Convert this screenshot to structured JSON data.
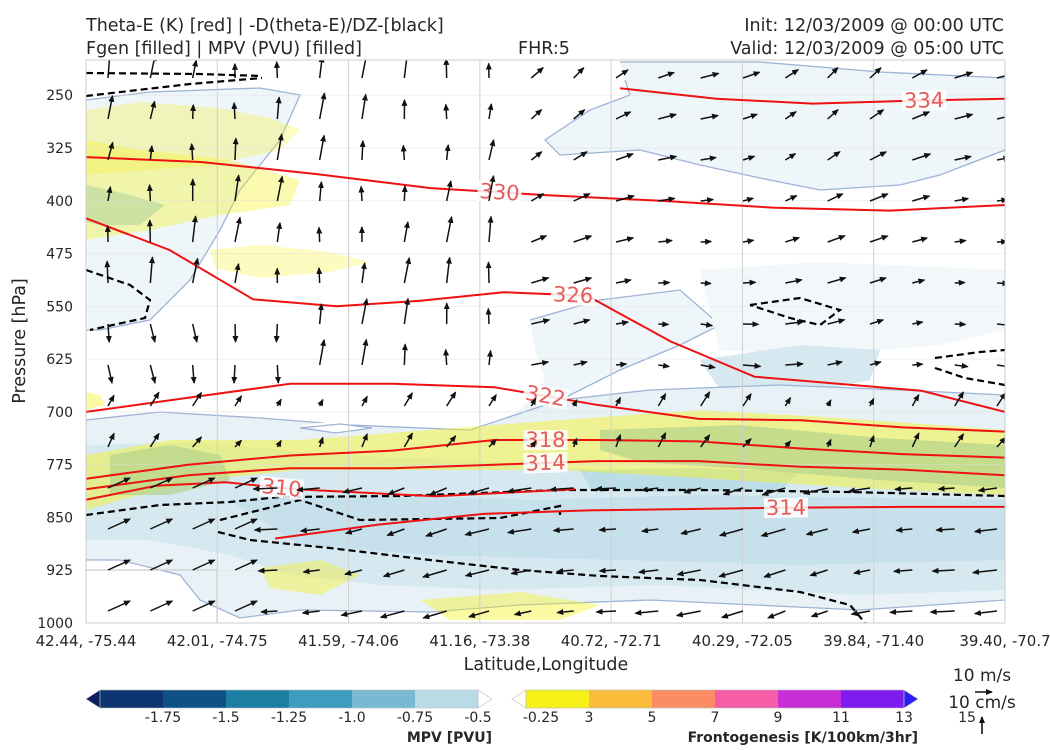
{
  "header": {
    "title_line1": "Theta-E (K) [red] | -D(theta-E)/DZ-[black]",
    "title_line2": "Fgen [filled] | MPV (PVU) [filled]",
    "fhr": "FHR:5",
    "init": "Init: 12/03/2009 @ 00:00 UTC",
    "valid": "Valid: 12/03/2009 @ 05:00 UTC"
  },
  "chart_data": {
    "type": "cross-section",
    "xlabel": "Latitude,Longitude",
    "ylabel": "Pressure [hPa]",
    "x_ticks": [
      "42.44, -75.44",
      "42.01, -74.75",
      "41.59, -74.06",
      "41.16, -73.38",
      "40.72, -72.71",
      "40.29, -72.05",
      "39.84, -71.40",
      "39.40, -70.7"
    ],
    "y_ticks": [
      250,
      325,
      400,
      475,
      550,
      625,
      700,
      775,
      850,
      925,
      1000
    ],
    "y_range": [
      200,
      1000
    ],
    "y_inverted": true,
    "theta_e_contours": [
      {
        "label": "334",
        "y": [
          240,
          255,
          262,
          258,
          255
        ]
      },
      {
        "label": "330",
        "y": [
          338,
          345,
          362,
          382,
          392,
          400,
          410,
          414,
          406
        ]
      },
      {
        "label": "326",
        "y": [
          425,
          470,
          540,
          550,
          542,
          530,
          535,
          600,
          650,
          660,
          670,
          700
        ]
      },
      {
        "label": "322",
        "y": [
          700,
          680,
          660,
          660,
          665,
          690,
          710,
          712,
          722,
          728
        ]
      },
      {
        "label": "318",
        "y": [
          795,
          775,
          762,
          755,
          740,
          740,
          742,
          752,
          760,
          765
        ]
      },
      {
        "label": "314",
        "y": [
          810,
          790,
          780,
          780,
          775,
          770,
          770,
          778,
          782,
          790
        ]
      },
      {
        "label": "310",
        "y": [
          825,
          805,
          800,
          810,
          815,
          820,
          815,
          810
        ]
      },
      {
        "label": "314",
        "y": [
          880,
          860,
          845,
          840,
          838,
          836,
          835,
          835
        ]
      }
    ],
    "mpv_colorbar": {
      "label": "MPV [PVU]",
      "ticks": [
        "-1.75",
        "-1.5",
        "-1.25",
        "-1.0",
        "-0.75",
        "-0.5",
        "-0.25"
      ],
      "colors": [
        "#0b1f5c",
        "#0d3670",
        "#0d5186",
        "#1a7fa3",
        "#3d9cbf",
        "#78bad2",
        "#b8dbe6",
        "#ffffff"
      ]
    },
    "fgen_colorbar": {
      "label": "Frontogenesis [K/100km/3hr]",
      "ticks": [
        "3",
        "5",
        "7",
        "9",
        "11",
        "13",
        "15"
      ],
      "colors": [
        "#ffffff",
        "#f7f11a",
        "#fbbd3b",
        "#fb8c64",
        "#f55ea4",
        "#c72ed6",
        "#7d1bf0",
        "#2a1df5"
      ]
    },
    "wind_key": {
      "horizontal": "10 m/s",
      "vertical": "10 cm/s"
    }
  }
}
